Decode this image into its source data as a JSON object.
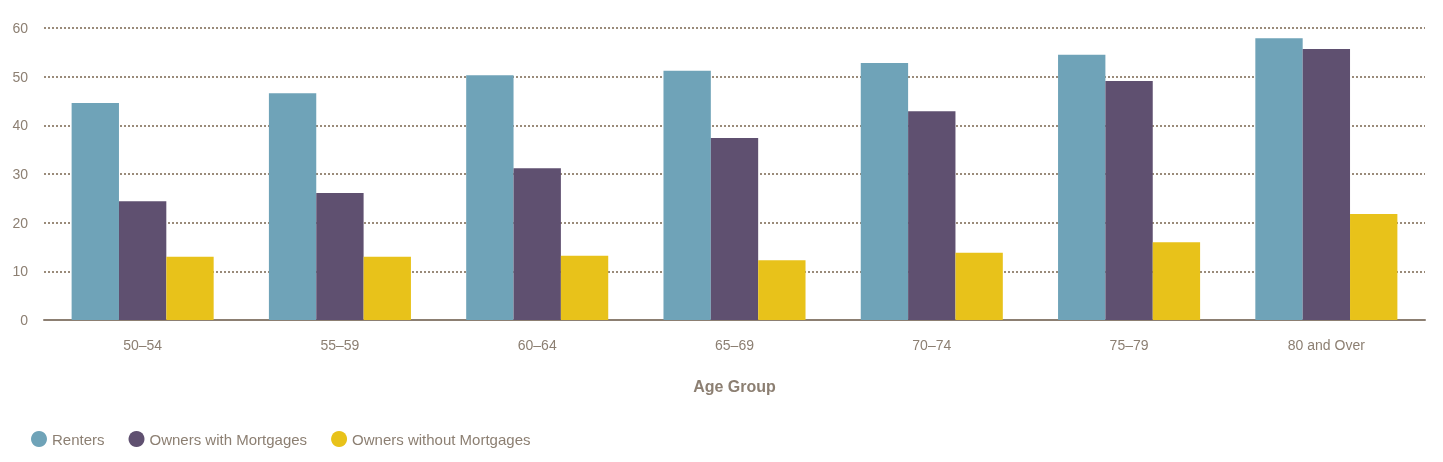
{
  "chart_data": {
    "type": "bar",
    "xlabel": "Age Group",
    "categories": [
      "50–54",
      "55–59",
      "60–64",
      "65–69",
      "70–74",
      "75–79",
      "80 and Over"
    ],
    "series": [
      {
        "name": "Renters",
        "color": "#6fa3b8",
        "values": [
          44.6,
          46.6,
          50.3,
          51.2,
          52.8,
          54.5,
          57.9
        ]
      },
      {
        "name": "Owners with Mortgages",
        "color": "#5f5070",
        "values": [
          24.4,
          26.1,
          31.2,
          37.4,
          42.9,
          49.1,
          55.7
        ]
      },
      {
        "name": "Owners without Mortgages",
        "color": "#e8c21a",
        "values": [
          13.0,
          13.0,
          13.2,
          12.3,
          13.8,
          16.0,
          21.8
        ]
      }
    ],
    "ylim": [
      0,
      60
    ],
    "yticks": [
      0,
      10,
      20,
      30,
      40,
      50,
      60
    ],
    "grid": "y",
    "legend": "bottom left"
  }
}
